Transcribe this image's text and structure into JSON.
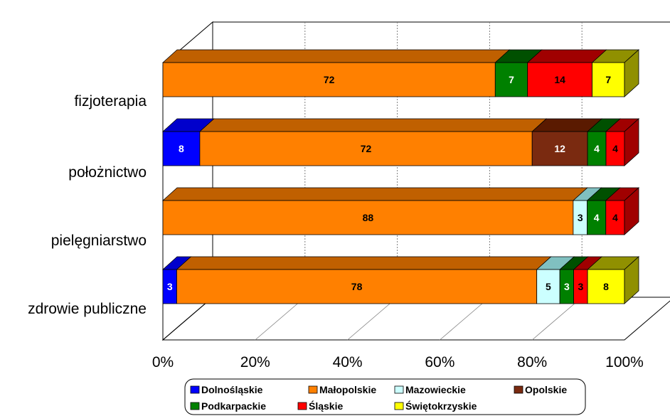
{
  "chart_data": {
    "type": "bar",
    "orientation": "horizontal",
    "stacked": "percent",
    "three_d": true,
    "categories": [
      "fizjoterapia",
      "położnictwo",
      "pielęgniarstwo",
      "zdrowie publiczne"
    ],
    "series": [
      {
        "name": "Dolnośląskie",
        "color": "#0000cc",
        "front": "#0000ff",
        "values": [
          0,
          8,
          0,
          3
        ],
        "label_color": "#ffffff"
      },
      {
        "name": "Małopolskie",
        "color": "#c06000",
        "front": "#ff8000",
        "values": [
          72,
          72,
          88,
          78
        ],
        "label_color": "#000000"
      },
      {
        "name": "Mazowieckie",
        "color": "#80c0c0",
        "front": "#ccffff",
        "values": [
          0,
          0,
          3,
          5
        ],
        "label_color": "#000000"
      },
      {
        "name": "Opolskie",
        "color": "#5a1a00",
        "front": "#7a2a10",
        "values": [
          0,
          12,
          0,
          0
        ],
        "label_color": "#ffffff"
      },
      {
        "name": "Podkarpackie",
        "color": "#005000",
        "front": "#008000",
        "values": [
          7,
          4,
          4,
          3
        ],
        "label_color": "#ffffff"
      },
      {
        "name": "Śląskie",
        "color": "#a00000",
        "front": "#ff0000",
        "values": [
          14,
          4,
          4,
          3
        ],
        "label_color": "#000000"
      },
      {
        "name": "Świętokrzyskie",
        "color": "#909000",
        "front": "#ffff00",
        "values": [
          7,
          0,
          0,
          8
        ],
        "label_color": "#000000"
      }
    ],
    "x_ticks": [
      "0%",
      "20%",
      "40%",
      "60%",
      "80%",
      "100%"
    ],
    "xlim": [
      0,
      100
    ],
    "grid": true,
    "legend": "bottom"
  }
}
